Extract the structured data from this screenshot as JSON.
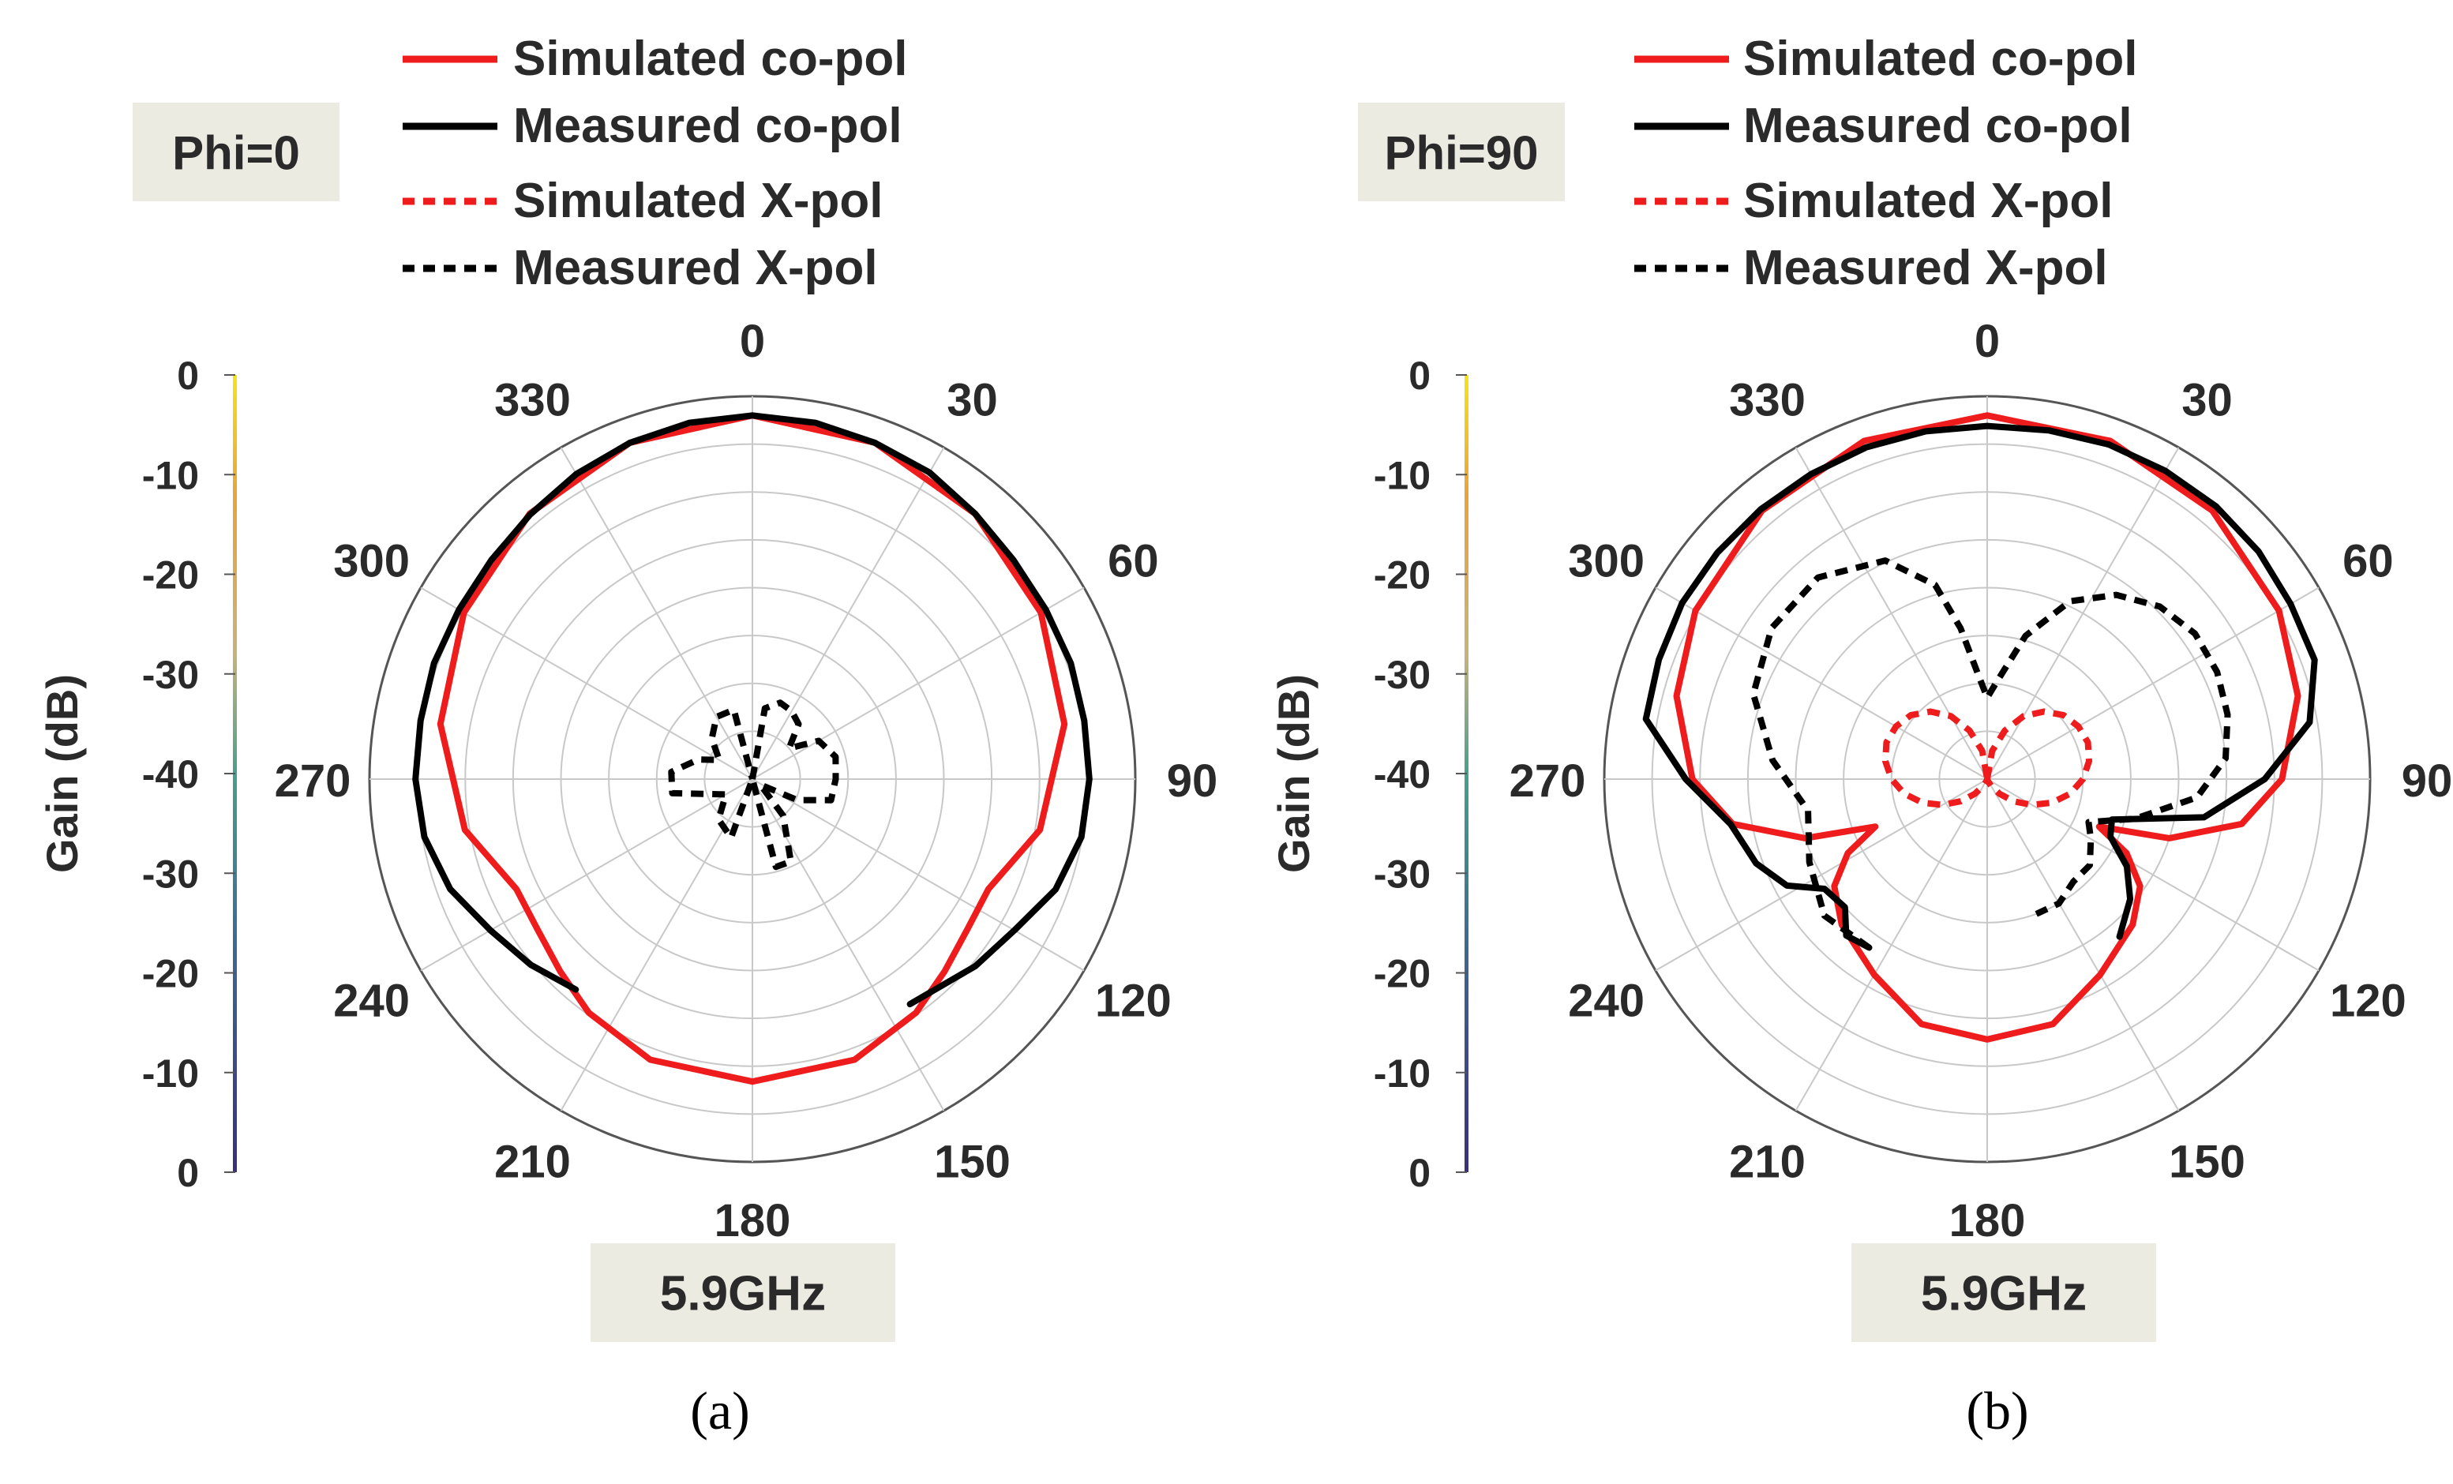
{
  "colors": {
    "simulated": "#ee1c1c",
    "measured": "#000000",
    "box": "#ecebe2",
    "grid": "#c8c8c8",
    "text": "#2a2a2a"
  },
  "panels": [
    {
      "caption": "(a)",
      "phi_label": "Phi=0",
      "freq_label": "5.9GHz"
    },
    {
      "caption": "(b)",
      "phi_label": "Phi=90",
      "freq_label": "5.9GHz"
    }
  ],
  "chart_data": [
    {
      "type": "polar-line",
      "title": "Phi=0",
      "annotation": "5.9GHz",
      "ylabel": "Gain (dB)",
      "colorbar_ticks": [
        "0",
        "-10",
        "-20",
        "-30",
        "-40",
        "-30",
        "-20",
        "-10",
        "0"
      ],
      "angle_ticks": [
        "0",
        "30",
        "60",
        "90",
        "120",
        "150",
        "180",
        "210",
        "240",
        "270",
        "300",
        "330"
      ],
      "radial_range": [
        -40,
        0
      ],
      "legend": [
        {
          "name": "Simulated co-pol",
          "color": "#ee1c1c",
          "style": "solid"
        },
        {
          "name": "Measured co-pol",
          "color": "#000000",
          "style": "solid"
        },
        {
          "name": "Simulated X-pol",
          "color": "#ee1c1c",
          "style": "dotted"
        },
        {
          "name": "Measured X-pol",
          "color": "#000000",
          "style": "dotted"
        }
      ],
      "series": [
        {
          "name": "Simulated co-pol",
          "color": "#ee1c1c",
          "style": "solid",
          "closed": true,
          "theta": [
            0,
            20,
            40,
            60,
            80,
            100,
            115,
            125,
            135,
            145,
            160,
            180,
            200,
            215,
            225,
            235,
            245,
            260,
            280,
            300,
            320,
            340
          ],
          "gain": [
            -2,
            -2.6,
            -3.8,
            -5.2,
            -6.9,
            -9.5,
            -12.8,
            -12.6,
            -11.6,
            -10.2,
            -8.8,
            -8.4,
            -8.8,
            -10.2,
            -11.6,
            -12.6,
            -12.8,
            -9.5,
            -6.9,
            -5.2,
            -3.8,
            -2.6
          ]
        },
        {
          "name": "Measured co-pol",
          "color": "#000000",
          "style": "solid",
          "closed": false,
          "theta": [
            145,
            130,
            120,
            110,
            100,
            90,
            80,
            70,
            60,
            50,
            40,
            30,
            20,
            10,
            0,
            350,
            340,
            330,
            320,
            310,
            300,
            290,
            280,
            270,
            260,
            250,
            240,
            230,
            220
          ],
          "gain": [
            -11.3,
            -9.6,
            -8.4,
            -6.3,
            -5.1,
            -4.8,
            -4.8,
            -4.6,
            -4.6,
            -4.4,
            -3.8,
            -3,
            -2.6,
            -2.2,
            -2,
            -2.2,
            -2.6,
            -3.2,
            -3.9,
            -4.4,
            -4.6,
            -4.6,
            -4.8,
            -4.8,
            -5.2,
            -6.4,
            -8.4,
            -9.8,
            -11.3
          ]
        },
        {
          "name": "Measured X-pol",
          "color": "#000000",
          "style": "dotted",
          "closed": false,
          "theta": [
            0,
            10,
            20,
            30,
            40,
            50,
            60,
            75,
            90,
            105,
            115,
            125,
            140,
            155,
            165,
            180,
            200,
            220,
            240,
            260,
            275,
            290,
            300,
            315,
            330,
            345,
            360
          ],
          "gain": [
            -40,
            -32.5,
            -31.5,
            -31.8,
            -32.5,
            -35,
            -32,
            -31,
            -31.3,
            -31.5,
            -34.8,
            -39,
            -35,
            -30.5,
            -30.5,
            -40,
            -33.5,
            -34.5,
            -36.8,
            -31.5,
            -31.5,
            -34,
            -36,
            -34,
            -32.5,
            -32.5,
            -40
          ]
        }
      ]
    },
    {
      "type": "polar-line",
      "title": "Phi=90",
      "annotation": "5.9GHz",
      "ylabel": "Gain (dB)",
      "colorbar_ticks": [
        "0",
        "-10",
        "-20",
        "-30",
        "-40",
        "-30",
        "-20",
        "-10",
        "0"
      ],
      "angle_ticks": [
        "0",
        "30",
        "60",
        "90",
        "120",
        "150",
        "180",
        "210",
        "240",
        "270",
        "300",
        "330"
      ],
      "radial_range": [
        -40,
        0
      ],
      "legend": [
        {
          "name": "Simulated co-pol",
          "color": "#ee1c1c",
          "style": "solid"
        },
        {
          "name": "Measured co-pol",
          "color": "#000000",
          "style": "solid"
        },
        {
          "name": "Simulated X-pol",
          "color": "#ee1c1c",
          "style": "dotted"
        },
        {
          "name": "Measured X-pol",
          "color": "#000000",
          "style": "dotted"
        }
      ],
      "series": [
        {
          "name": "Simulated co-pol",
          "color": "#ee1c1c",
          "style": "solid",
          "closed": true,
          "theta": [
            0,
            20,
            40,
            60,
            75,
            90,
            100,
            108,
            113,
            118,
            125,
            135,
            150,
            165,
            180,
            195,
            210,
            225,
            235,
            242,
            247,
            252,
            260,
            270,
            285,
            300,
            320,
            340
          ],
          "gain": [
            -2,
            -2.4,
            -3.4,
            -4.8,
            -6.4,
            -9.2,
            -13,
            -20,
            -27.3,
            -23.5,
            -20.5,
            -18.5,
            -16.4,
            -13.5,
            -12.8,
            -13.5,
            -16.4,
            -18.5,
            -20.5,
            -23.5,
            -27.3,
            -20,
            -13,
            -9.2,
            -6.4,
            -4.8,
            -3.4,
            -2.4
          ]
        },
        {
          "name": "Measured co-pol",
          "color": "#000000",
          "style": "solid",
          "closed": false,
          "theta": [
            140,
            130,
            122,
            115,
            108,
            100,
            90,
            80,
            70,
            60,
            50,
            40,
            30,
            20,
            10,
            0,
            350,
            340,
            330,
            320,
            310,
            300,
            290,
            280,
            270,
            260,
            250,
            242,
            236,
            228,
            222,
            215
          ],
          "gain": [
            -18.5,
            -20.5,
            -22.8,
            -25.8,
            -26.3,
            -17,
            -11,
            -5.8,
            -3.6,
            -3.4,
            -3,
            -2.8,
            -2.8,
            -2.8,
            -3,
            -3.1,
            -3.1,
            -3.1,
            -3.2,
            -3.2,
            -3.2,
            -3.2,
            -3.5,
            -3.8,
            -8.5,
            -12.8,
            -14.3,
            -16.3,
            -19.5,
            -20,
            -18,
            -18.5
          ]
        },
        {
          "name": "Measured X-pol",
          "color": "#000000",
          "style": "dotted",
          "closed": false,
          "theta": [
            215,
            230,
            245,
            260,
            275,
            290,
            305,
            320,
            335,
            345,
            350,
            355,
            0,
            5,
            15,
            25,
            35,
            45,
            55,
            65,
            75,
            85,
            95,
            105,
            113,
            120,
            130,
            140,
            150,
            160
          ],
          "gain": [
            -18.5,
            -17.8,
            -19.5,
            -21,
            -17.5,
            -14,
            -12.5,
            -12.5,
            -14.8,
            -19,
            -24,
            -29,
            -31.5,
            -30,
            -24.5,
            -19.5,
            -16.5,
            -14.5,
            -13.5,
            -13.5,
            -14,
            -15,
            -18,
            -24,
            -28.5,
            -27.5,
            -26,
            -26,
            -25,
            -25
          ]
        },
        {
          "name": "Simulated X-pol",
          "color": "#ee1c1c",
          "style": "dotted",
          "closed": true,
          "theta": [
            0,
            10,
            20,
            30,
            40,
            50,
            60,
            70,
            80,
            90,
            100,
            110,
            120,
            130,
            140,
            150,
            160,
            170,
            180,
            190,
            200,
            210,
            220,
            230,
            240,
            250,
            260,
            270,
            280,
            290,
            300,
            310,
            320,
            330,
            340,
            350
          ],
          "gain": [
            -40,
            -37,
            -34.6,
            -32.4,
            -30.8,
            -29.6,
            -29,
            -28.8,
            -29.2,
            -30,
            -31.2,
            -32.8,
            -34.6,
            -36.4,
            -38,
            -39.2,
            -39.8,
            -40,
            -40,
            -40,
            -39.8,
            -39.2,
            -38,
            -36.4,
            -34.6,
            -32.8,
            -31.2,
            -30,
            -29.2,
            -28.8,
            -29,
            -29.6,
            -30.8,
            -32.4,
            -34.6,
            -37
          ]
        }
      ]
    }
  ]
}
